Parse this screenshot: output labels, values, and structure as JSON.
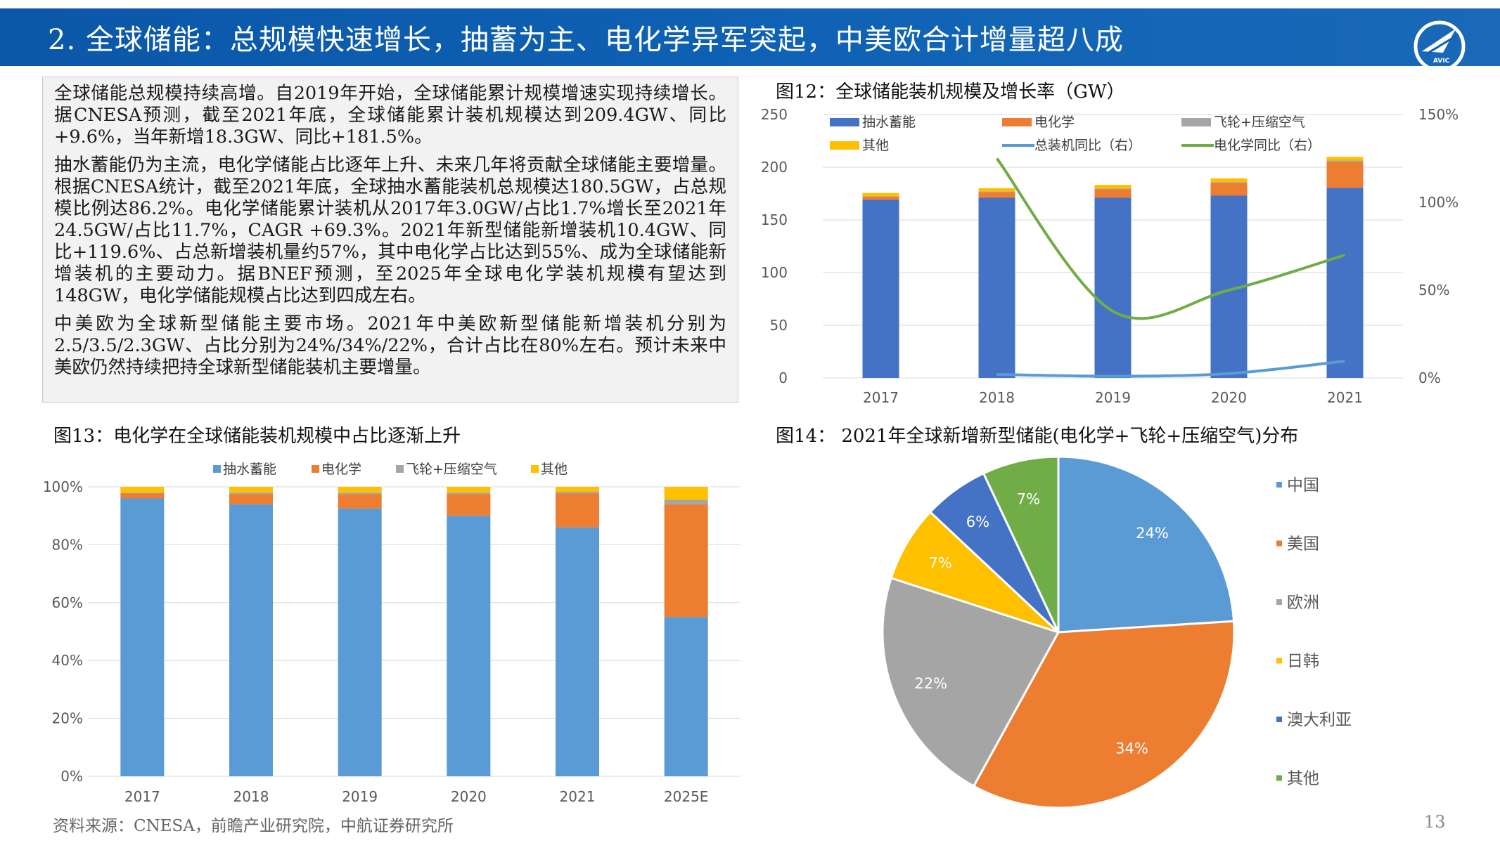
{
  "header": {
    "title": "2. 全球储能：总规模快速增长，抽蓄为主、电化学异军突起，中美欧合计增量超八成",
    "logo_text": "AVIC"
  },
  "textbox": {
    "paragraphs": [
      "全球储能总规模持续高增。自2019年开始，全球储能累计规模增速实现持续增长。据CNESA预测，截至2021年底，全球储能累计装机规模达到209.4GW、同比+9.6%，当年新增18.3GW、同比+181.5%。",
      "抽水蓄能仍为主流，电化学储能占比逐年上升、未来几年将贡献全球储能主要增量。根据CNESA统计，截至2021年底，全球抽水蓄能装机总规模达180.5GW，占总规模比例达86.2%。电化学储能累计装机从2017年3.0GW/占比1.7%增长至2021年24.5GW/占比11.7%，CAGR +69.3%。2021年新型储能新增装机10.4GW、同比+119.6%、占总新增装机量约57%，其中电化学占比达到55%、成为全球储能新增装机的主要动力。据BNEF预测，至2025年全球电化学装机规模有望达到148GW，电化学储能规模占比达到四成左右。",
      "中美欧为全球新型储能主要市场。2021年中美欧新型储能新增装机分别为2.5/3.5/2.3GW、占比分别为24%/34%/22%，合计占比在80%左右。预计未来中美欧仍然持续把持全球新型储能装机主要增量。"
    ]
  },
  "fig12": {
    "title": "图12：全球储能装机规模及增长率（GW）"
  },
  "fig13": {
    "title": "图13：电化学在全球储能装机规模中占比逐渐上升"
  },
  "fig14": {
    "title": "图14： 2021年全球新增新型储能(电化学+飞轮+压缩空气)分布"
  },
  "footer": {
    "source": "资料来源：CNESA，前瞻产业研究院，中航证券研究所",
    "page": "13"
  },
  "colors": {
    "blue_dark": "#4472c4",
    "blue_light": "#5b9bd5",
    "orange": "#ed7d31",
    "gray": "#a5a5a5",
    "yellow": "#ffc000",
    "green": "#70ad47"
  },
  "chart_data": [
    {
      "type": "bar",
      "stacked": true,
      "categories": [
        "2017",
        "2018",
        "2019",
        "2020",
        "2021"
      ],
      "series": [
        {
          "name": "抽水蓄能",
          "axis": "left",
          "values": [
            169,
            171,
            171,
            173,
            180.5
          ]
        },
        {
          "name": "电化学",
          "axis": "left",
          "values": [
            3.0,
            5.5,
            8,
            12,
            24.5
          ]
        },
        {
          "name": "飞轮+压缩空气",
          "axis": "left",
          "values": [
            0.5,
            0.6,
            0.7,
            0.9,
            1.3
          ]
        },
        {
          "name": "其他",
          "axis": "left",
          "values": [
            3.0,
            3.0,
            3.5,
            3.5,
            3.5
          ]
        },
        {
          "name": "总装机同比（右）",
          "type": "line",
          "axis": "right",
          "values": [
            null,
            2,
            1,
            2.5,
            9.6
          ]
        },
        {
          "name": "电化学同比（右）",
          "type": "line",
          "axis": "right",
          "values": [
            null,
            125,
            38,
            50,
            70
          ]
        }
      ],
      "ylim": [
        0,
        250
      ],
      "yticks": [
        "0",
        "50",
        "100",
        "150",
        "200",
        "250"
      ],
      "y2lim": [
        0,
        150
      ],
      "y2ticks": [
        "0%",
        "50%",
        "100%",
        "150%"
      ],
      "legend": "top"
    },
    {
      "type": "bar",
      "stacked": true,
      "percent": true,
      "categories": [
        "2017",
        "2018",
        "2019",
        "2020",
        "2021",
        "2025E"
      ],
      "series": [
        {
          "name": "抽水蓄能",
          "values": [
            96,
            94,
            92.5,
            90,
            86,
            55
          ]
        },
        {
          "name": "电化学",
          "values": [
            1.7,
            3.5,
            5,
            7.5,
            11.7,
            39
          ]
        },
        {
          "name": "飞轮+压缩空气",
          "values": [
            0.3,
            0.5,
            0.5,
            0.5,
            0.6,
            1.5
          ]
        },
        {
          "name": "其他",
          "values": [
            2,
            2,
            2,
            2,
            1.7,
            4.5
          ]
        }
      ],
      "ylim": [
        0,
        100
      ],
      "yticks": [
        "0%",
        "20%",
        "40%",
        "60%",
        "80%",
        "100%"
      ],
      "legend": "top"
    },
    {
      "type": "pie",
      "slices": [
        {
          "name": "中国",
          "value": 24,
          "label": "24%"
        },
        {
          "name": "美国",
          "value": 34,
          "label": "34%"
        },
        {
          "name": "欧洲",
          "value": 22,
          "label": "22%"
        },
        {
          "name": "日韩",
          "value": 7,
          "label": "7%"
        },
        {
          "name": "澳大利亚",
          "value": 6,
          "label": "6%"
        },
        {
          "name": "其他",
          "value": 7,
          "label": "7%"
        }
      ],
      "legend": "right"
    }
  ]
}
